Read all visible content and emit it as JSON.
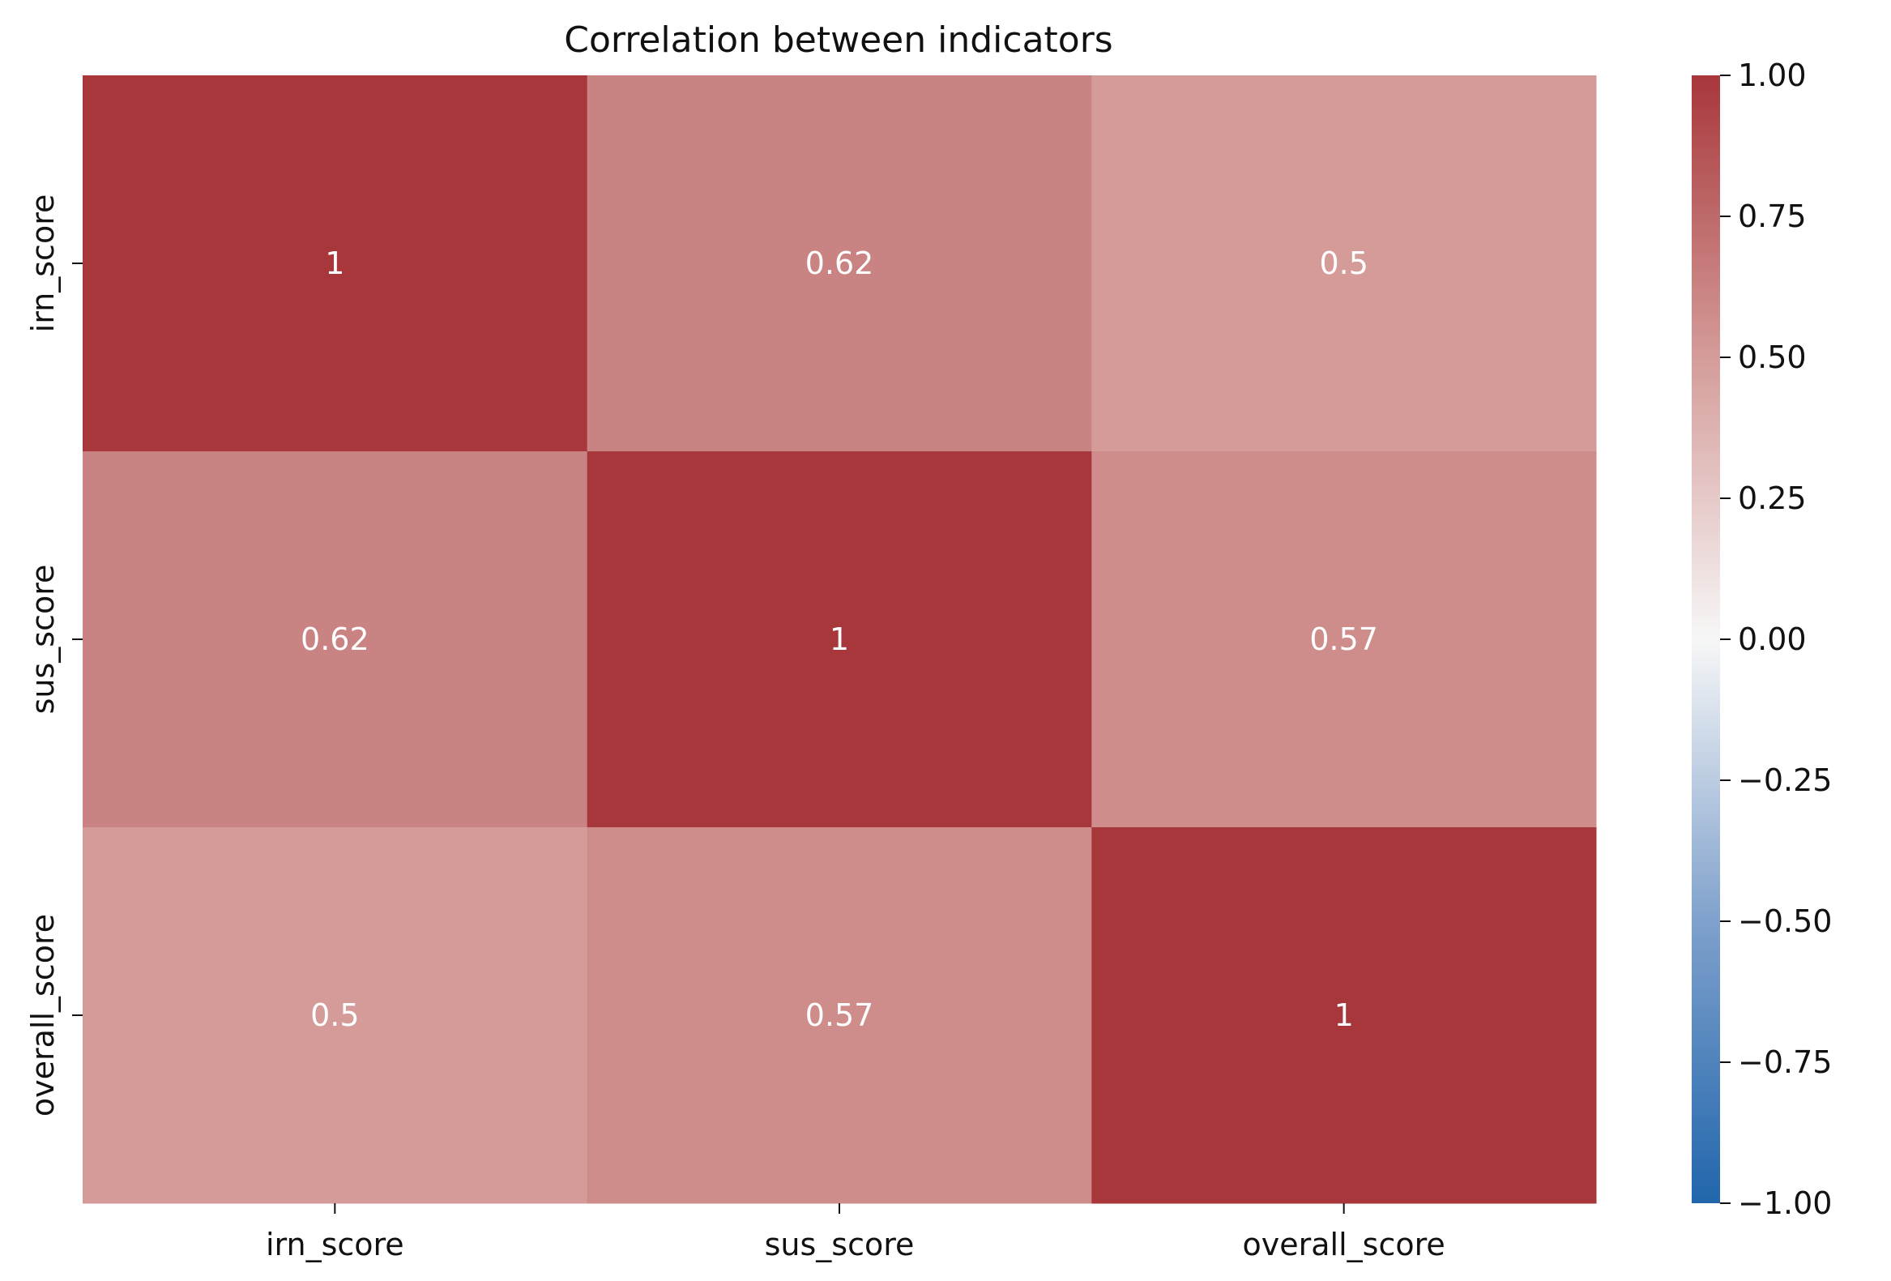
{
  "chart_data": {
    "type": "heatmap",
    "title": "Correlation between indicators",
    "x_categories": [
      "irn_score",
      "sus_score",
      "overall_score"
    ],
    "y_categories": [
      "irn_score",
      "sus_score",
      "overall_score"
    ],
    "values": [
      [
        1,
        0.62,
        0.5
      ],
      [
        0.62,
        1,
        0.57
      ],
      [
        0.5,
        0.57,
        1
      ]
    ],
    "annotations": [
      [
        "1",
        "0.62",
        "0.5"
      ],
      [
        "0.62",
        "1",
        "0.57"
      ],
      [
        "0.5",
        "0.57",
        "1"
      ]
    ],
    "colormap": "coolwarm-diverging",
    "color_range": [
      -1,
      1
    ],
    "colors": {
      "low": "#2166ac",
      "mid": "#f7f7f7",
      "high": "#a8373b",
      "annotation_text": "#ffffff"
    },
    "colorbar": {
      "ticks": [
        1.0,
        0.75,
        0.5,
        0.25,
        0.0,
        -0.25,
        -0.5,
        -0.75,
        -1.0
      ],
      "tick_labels": [
        "1.00",
        "0.75",
        "0.50",
        "0.25",
        "0.00",
        "−0.25",
        "−0.50",
        "−0.75",
        "−1.00"
      ]
    },
    "grid": false
  }
}
